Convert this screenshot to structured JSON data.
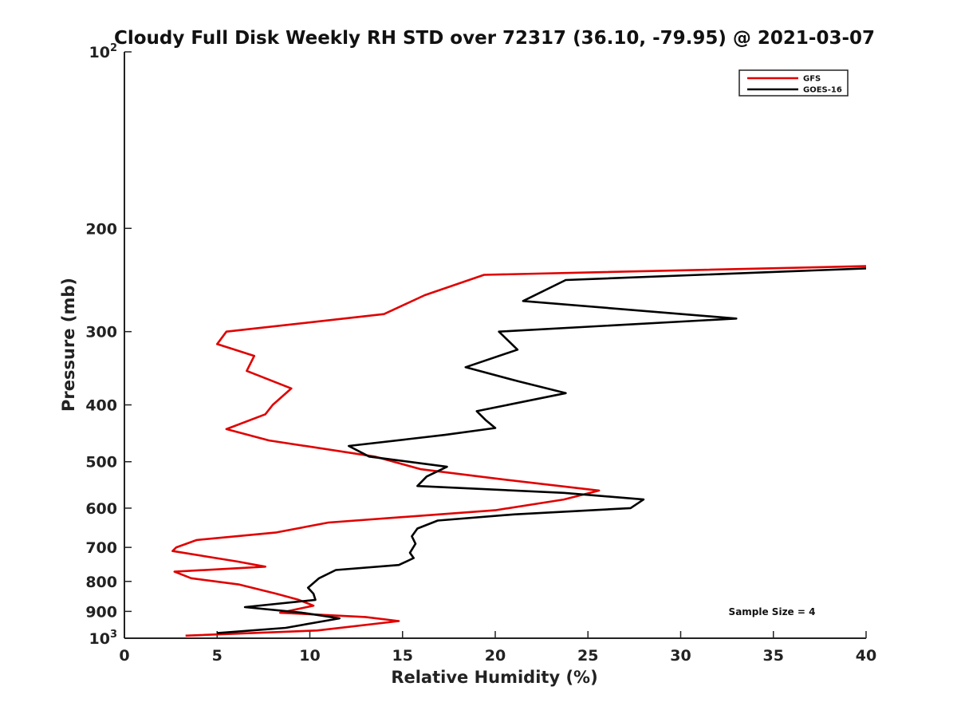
{
  "chart_data": {
    "type": "line",
    "title": "Cloudy Full Disk Weekly RH STD over 72317 (36.10, -79.95) @ 2021-03-07",
    "xlabel": "Relative Humidity (%)",
    "ylabel": "Pressure (mb)",
    "xlim": [
      0,
      40
    ],
    "ylim": [
      100,
      1000
    ],
    "y_scale": "log",
    "y_reversed": true,
    "grid": false,
    "legend_position": "top-right",
    "x_ticks": [
      "0",
      "5",
      "10",
      "15",
      "20",
      "25",
      "30",
      "35",
      "40"
    ],
    "y_ticks": [
      {
        "value": 100,
        "label": "10",
        "exp": "2"
      },
      {
        "value": 200,
        "label": "200"
      },
      {
        "value": 300,
        "label": "300"
      },
      {
        "value": 400,
        "label": "400"
      },
      {
        "value": 500,
        "label": "500"
      },
      {
        "value": 600,
        "label": "600"
      },
      {
        "value": 700,
        "label": "700"
      },
      {
        "value": 800,
        "label": "800"
      },
      {
        "value": 900,
        "label": "900"
      },
      {
        "value": 1000,
        "label": "10",
        "exp": "3"
      }
    ],
    "annotation": "Sample Size = 4",
    "series": [
      {
        "name": "GFS",
        "color": "#e00000",
        "points": [
          [
            40.0,
            232
          ],
          [
            19.4,
            240
          ],
          [
            16.2,
            260
          ],
          [
            14.0,
            280
          ],
          [
            5.5,
            300
          ],
          [
            5.0,
            315
          ],
          [
            7.0,
            330
          ],
          [
            6.6,
            350
          ],
          [
            9.0,
            375
          ],
          [
            8.0,
            400
          ],
          [
            7.6,
            415
          ],
          [
            5.5,
            440
          ],
          [
            7.8,
            460
          ],
          [
            13.5,
            490
          ],
          [
            16.0,
            515
          ],
          [
            20.2,
            535
          ],
          [
            25.6,
            560
          ],
          [
            23.7,
            580
          ],
          [
            20.0,
            605
          ],
          [
            11.0,
            635
          ],
          [
            8.2,
            660
          ],
          [
            3.9,
            680
          ],
          [
            2.8,
            700
          ],
          [
            2.6,
            710
          ],
          [
            6.1,
            740
          ],
          [
            7.6,
            755
          ],
          [
            2.7,
            770
          ],
          [
            3.6,
            790
          ],
          [
            6.2,
            810
          ],
          [
            8.2,
            840
          ],
          [
            9.4,
            860
          ],
          [
            10.2,
            880
          ],
          [
            8.4,
            905
          ],
          [
            13.0,
            920
          ],
          [
            14.8,
            935
          ],
          [
            10.4,
            970
          ],
          [
            3.3,
            990
          ]
        ]
      },
      {
        "name": "GOES-16",
        "color": "#000000",
        "points": [
          [
            40.0,
            234
          ],
          [
            23.8,
            245
          ],
          [
            21.5,
            266
          ],
          [
            33.0,
            285
          ],
          [
            20.2,
            300
          ],
          [
            21.2,
            322
          ],
          [
            18.4,
            345
          ],
          [
            21.3,
            365
          ],
          [
            23.8,
            382
          ],
          [
            19.0,
            410
          ],
          [
            19.5,
            425
          ],
          [
            20.0,
            438
          ],
          [
            17.3,
            450
          ],
          [
            12.1,
            470
          ],
          [
            13.2,
            490
          ],
          [
            17.4,
            510
          ],
          [
            16.3,
            530
          ],
          [
            15.8,
            550
          ],
          [
            23.7,
            565
          ],
          [
            28.0,
            580
          ],
          [
            27.3,
            600
          ],
          [
            21.0,
            615
          ],
          [
            16.9,
            630
          ],
          [
            15.8,
            650
          ],
          [
            15.5,
            670
          ],
          [
            15.7,
            690
          ],
          [
            15.4,
            715
          ],
          [
            15.6,
            730
          ],
          [
            14.8,
            750
          ],
          [
            11.4,
            765
          ],
          [
            10.5,
            790
          ],
          [
            9.9,
            820
          ],
          [
            10.2,
            840
          ],
          [
            10.3,
            860
          ],
          [
            6.5,
            885
          ],
          [
            9.6,
            905
          ],
          [
            11.6,
            925
          ],
          [
            8.7,
            960
          ],
          [
            5.0,
            980
          ]
        ]
      }
    ]
  }
}
